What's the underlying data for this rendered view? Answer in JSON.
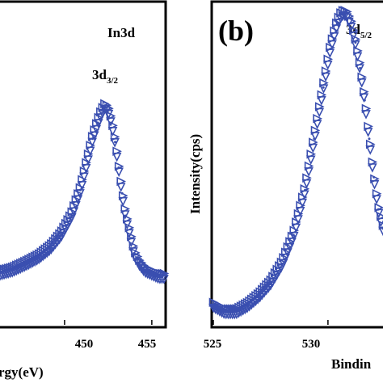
{
  "chart_data": [
    {
      "type": "scatter",
      "title": "In3d",
      "xlabel": "rgy(eV)",
      "ylabel": "",
      "xlim": [
        446.3,
        455.7
      ],
      "ylim": [
        0,
        1
      ],
      "x_ticks": [
        "450",
        "455"
      ],
      "annotations": [
        {
          "main": "3d",
          "sub": "3/2",
          "x": 452.4,
          "y": 0.79
        }
      ],
      "grid": false,
      "series": [
        {
          "marker": "triangle",
          "color": "#3a4fb0",
          "x": [
            446.3,
            447.0,
            447.8,
            448.5,
            449.2,
            449.8,
            450.4,
            450.9,
            451.3,
            451.6,
            451.9,
            452.1,
            452.3,
            452.5,
            452.7,
            452.9,
            453.1,
            453.3,
            453.5,
            453.8,
            454.0,
            454.3,
            454.6,
            455.0,
            455.4,
            455.6
          ],
          "values": [
            0.16,
            0.17,
            0.19,
            0.21,
            0.24,
            0.28,
            0.34,
            0.42,
            0.51,
            0.58,
            0.63,
            0.66,
            0.68,
            0.67,
            0.63,
            0.57,
            0.49,
            0.41,
            0.34,
            0.27,
            0.22,
            0.19,
            0.17,
            0.16,
            0.15,
            0.15
          ]
        }
      ]
    },
    {
      "type": "scatter",
      "panel_label": "(b)",
      "xlabel": "Bindin",
      "ylabel": "Intensity(cps)",
      "xlim": [
        525,
        532.4
      ],
      "ylim": [
        0,
        1
      ],
      "x_ticks": [
        "525",
        "530"
      ],
      "annotations": [
        {
          "main": "3d",
          "sub": "5/2",
          "x": 530.8,
          "y": 0.98
        }
      ],
      "grid": false,
      "series": [
        {
          "marker": "triangle",
          "color": "#3a4fb0",
          "x": [
            525.0,
            525.5,
            526.0,
            526.5,
            527.0,
            527.5,
            528.0,
            528.5,
            529.0,
            529.4,
            529.8,
            530.1,
            530.4,
            530.6,
            530.8,
            531.0,
            531.2,
            531.4,
            531.6,
            531.8,
            532.0,
            532.2,
            532.4
          ],
          "values": [
            0.06,
            0.04,
            0.04,
            0.06,
            0.09,
            0.13,
            0.19,
            0.28,
            0.42,
            0.58,
            0.74,
            0.86,
            0.94,
            0.97,
            0.97,
            0.94,
            0.88,
            0.8,
            0.7,
            0.58,
            0.46,
            0.36,
            0.3
          ]
        }
      ]
    }
  ]
}
